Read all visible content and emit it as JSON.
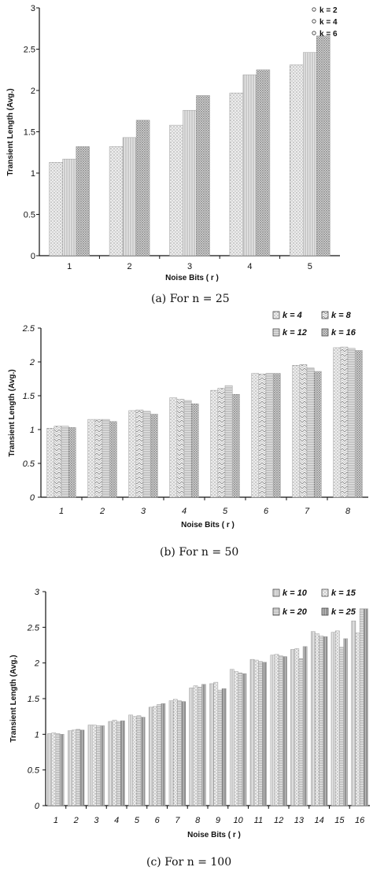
{
  "chart_data": [
    {
      "type": "bar",
      "caption": "(a) For n = 25",
      "xlabel": "Noise Bits ( r )",
      "ylabel": "Transient Length (Avg.)",
      "ylim": [
        0,
        3
      ],
      "yticks": [
        "0",
        "0.5",
        "1",
        "1.5",
        "2",
        "2.5",
        "3"
      ],
      "categories": [
        "1",
        "2",
        "3",
        "4",
        "5"
      ],
      "series": [
        {
          "name": "k = 2",
          "values": [
            1.13,
            1.32,
            1.58,
            1.97,
            2.31
          ]
        },
        {
          "name": "k = 4",
          "values": [
            1.17,
            1.43,
            1.76,
            2.19,
            2.46
          ]
        },
        {
          "name": "k = 6",
          "values": [
            1.32,
            1.64,
            1.94,
            2.25,
            2.66
          ]
        }
      ],
      "grid": false,
      "legend": "top-right"
    },
    {
      "type": "bar",
      "caption": "(b) For n = 50",
      "xlabel": "Noise Bits ( r )",
      "ylabel": "Transient Length (Avg.)",
      "ylim": [
        0,
        2.5
      ],
      "yticks": [
        "0",
        "0.5",
        "1",
        "1.5",
        "2",
        "2.5"
      ],
      "categories": [
        "1",
        "2",
        "3",
        "4",
        "5",
        "6",
        "7",
        "8"
      ],
      "series": [
        {
          "name": "k = 4",
          "values": [
            1.02,
            1.15,
            1.28,
            1.47,
            1.58,
            1.83,
            1.95,
            2.21
          ]
        },
        {
          "name": "k = 8",
          "values": [
            1.05,
            1.15,
            1.29,
            1.45,
            1.61,
            1.82,
            1.96,
            2.22
          ]
        },
        {
          "name": "k = 12",
          "values": [
            1.05,
            1.15,
            1.27,
            1.43,
            1.65,
            1.83,
            1.91,
            2.2
          ]
        },
        {
          "name": "k = 16",
          "values": [
            1.03,
            1.12,
            1.23,
            1.38,
            1.52,
            1.83,
            1.86,
            2.17
          ]
        }
      ],
      "grid": false,
      "legend": "top-right"
    },
    {
      "type": "bar",
      "caption": "(c) For n = 100",
      "xlabel": "Noise Bits ( r )",
      "ylabel": "Transient Length (Avg.)",
      "ylim": [
        0,
        3
      ],
      "yticks": [
        "0",
        "0.5",
        "1",
        "1.5",
        "2",
        "2.5",
        "3"
      ],
      "categories": [
        "1",
        "2",
        "3",
        "4",
        "5",
        "6",
        "7",
        "8",
        "9",
        "10",
        "11",
        "12",
        "13",
        "14",
        "15",
        "16"
      ],
      "series": [
        {
          "name": "k = 10",
          "values": [
            1.01,
            1.05,
            1.13,
            1.18,
            1.27,
            1.38,
            1.47,
            1.65,
            1.71,
            1.91,
            2.05,
            2.11,
            2.19,
            2.44,
            2.43,
            2.59
          ]
        },
        {
          "name": "k = 15",
          "values": [
            1.02,
            1.06,
            1.13,
            1.2,
            1.25,
            1.39,
            1.49,
            1.68,
            1.73,
            1.88,
            2.04,
            2.12,
            2.2,
            2.41,
            2.45,
            2.42
          ]
        },
        {
          "name": "k = 20",
          "values": [
            1.01,
            1.07,
            1.12,
            1.18,
            1.26,
            1.42,
            1.47,
            1.66,
            1.62,
            1.86,
            2.02,
            2.1,
            2.06,
            2.38,
            2.22,
            2.76
          ]
        },
        {
          "name": "k = 25",
          "values": [
            1.0,
            1.06,
            1.12,
            1.19,
            1.24,
            1.43,
            1.46,
            1.7,
            1.64,
            1.85,
            2.01,
            2.09,
            2.23,
            2.37,
            2.34,
            2.76
          ]
        }
      ],
      "grid": false,
      "legend": "top-right"
    }
  ]
}
